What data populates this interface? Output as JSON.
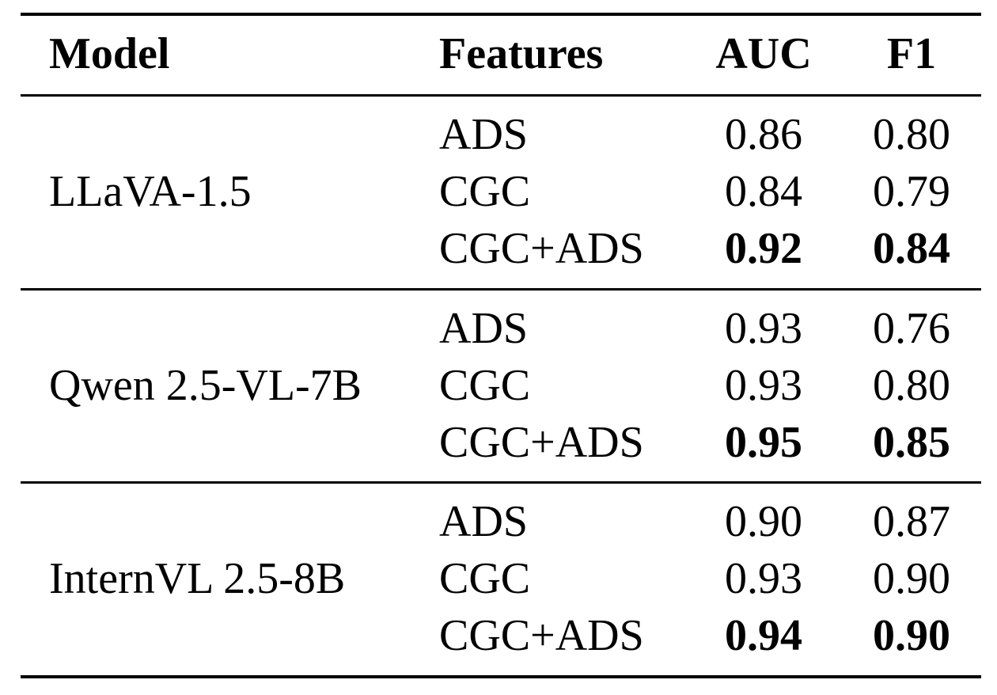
{
  "table": {
    "header": [
      "Model",
      "Features",
      "AUC",
      "F1"
    ],
    "groups": [
      {
        "model": "LLaVA-1.5",
        "rows": [
          [
            "ADS",
            "0.86",
            "0.80"
          ],
          [
            "CGC",
            "0.84",
            "0.79"
          ],
          [
            "CGC+ADS",
            "0.92",
            "0.84"
          ]
        ]
      },
      {
        "model": "Qwen 2.5-VL-7B",
        "rows": [
          [
            "ADS",
            "0.93",
            "0.76"
          ],
          [
            "CGC",
            "0.93",
            "0.80"
          ],
          [
            "CGC+ADS",
            "0.95",
            "0.85"
          ]
        ]
      },
      {
        "model": "InternVL 2.5-8B",
        "rows": [
          [
            "ADS",
            "0.90",
            "0.87"
          ],
          [
            "CGC",
            "0.93",
            "0.90"
          ],
          [
            "CGC+ADS",
            "0.94",
            "0.90"
          ]
        ]
      }
    ]
  }
}
